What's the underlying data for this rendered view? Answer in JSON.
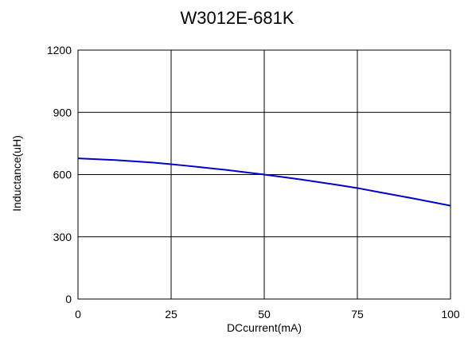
{
  "chart_data": {
    "type": "line",
    "title": "W3012E-681K",
    "xlabel": "DCcurrent(mA)",
    "ylabel": "Inductance(uH)",
    "xlim": [
      0,
      100
    ],
    "ylim": [
      0,
      1200
    ],
    "x_ticks": [
      "0",
      "25",
      "50",
      "75",
      "100"
    ],
    "y_ticks": [
      "0",
      "300",
      "600",
      "900",
      "1200"
    ],
    "grid": true,
    "series": [
      {
        "color": "#0000cc",
        "x": [
          0,
          10,
          20,
          25,
          30,
          40,
          50,
          60,
          70,
          75,
          80,
          90,
          100
        ],
        "y": [
          678,
          670,
          658,
          650,
          641,
          622,
          600,
          576,
          549,
          535,
          518,
          485,
          450
        ]
      }
    ]
  }
}
